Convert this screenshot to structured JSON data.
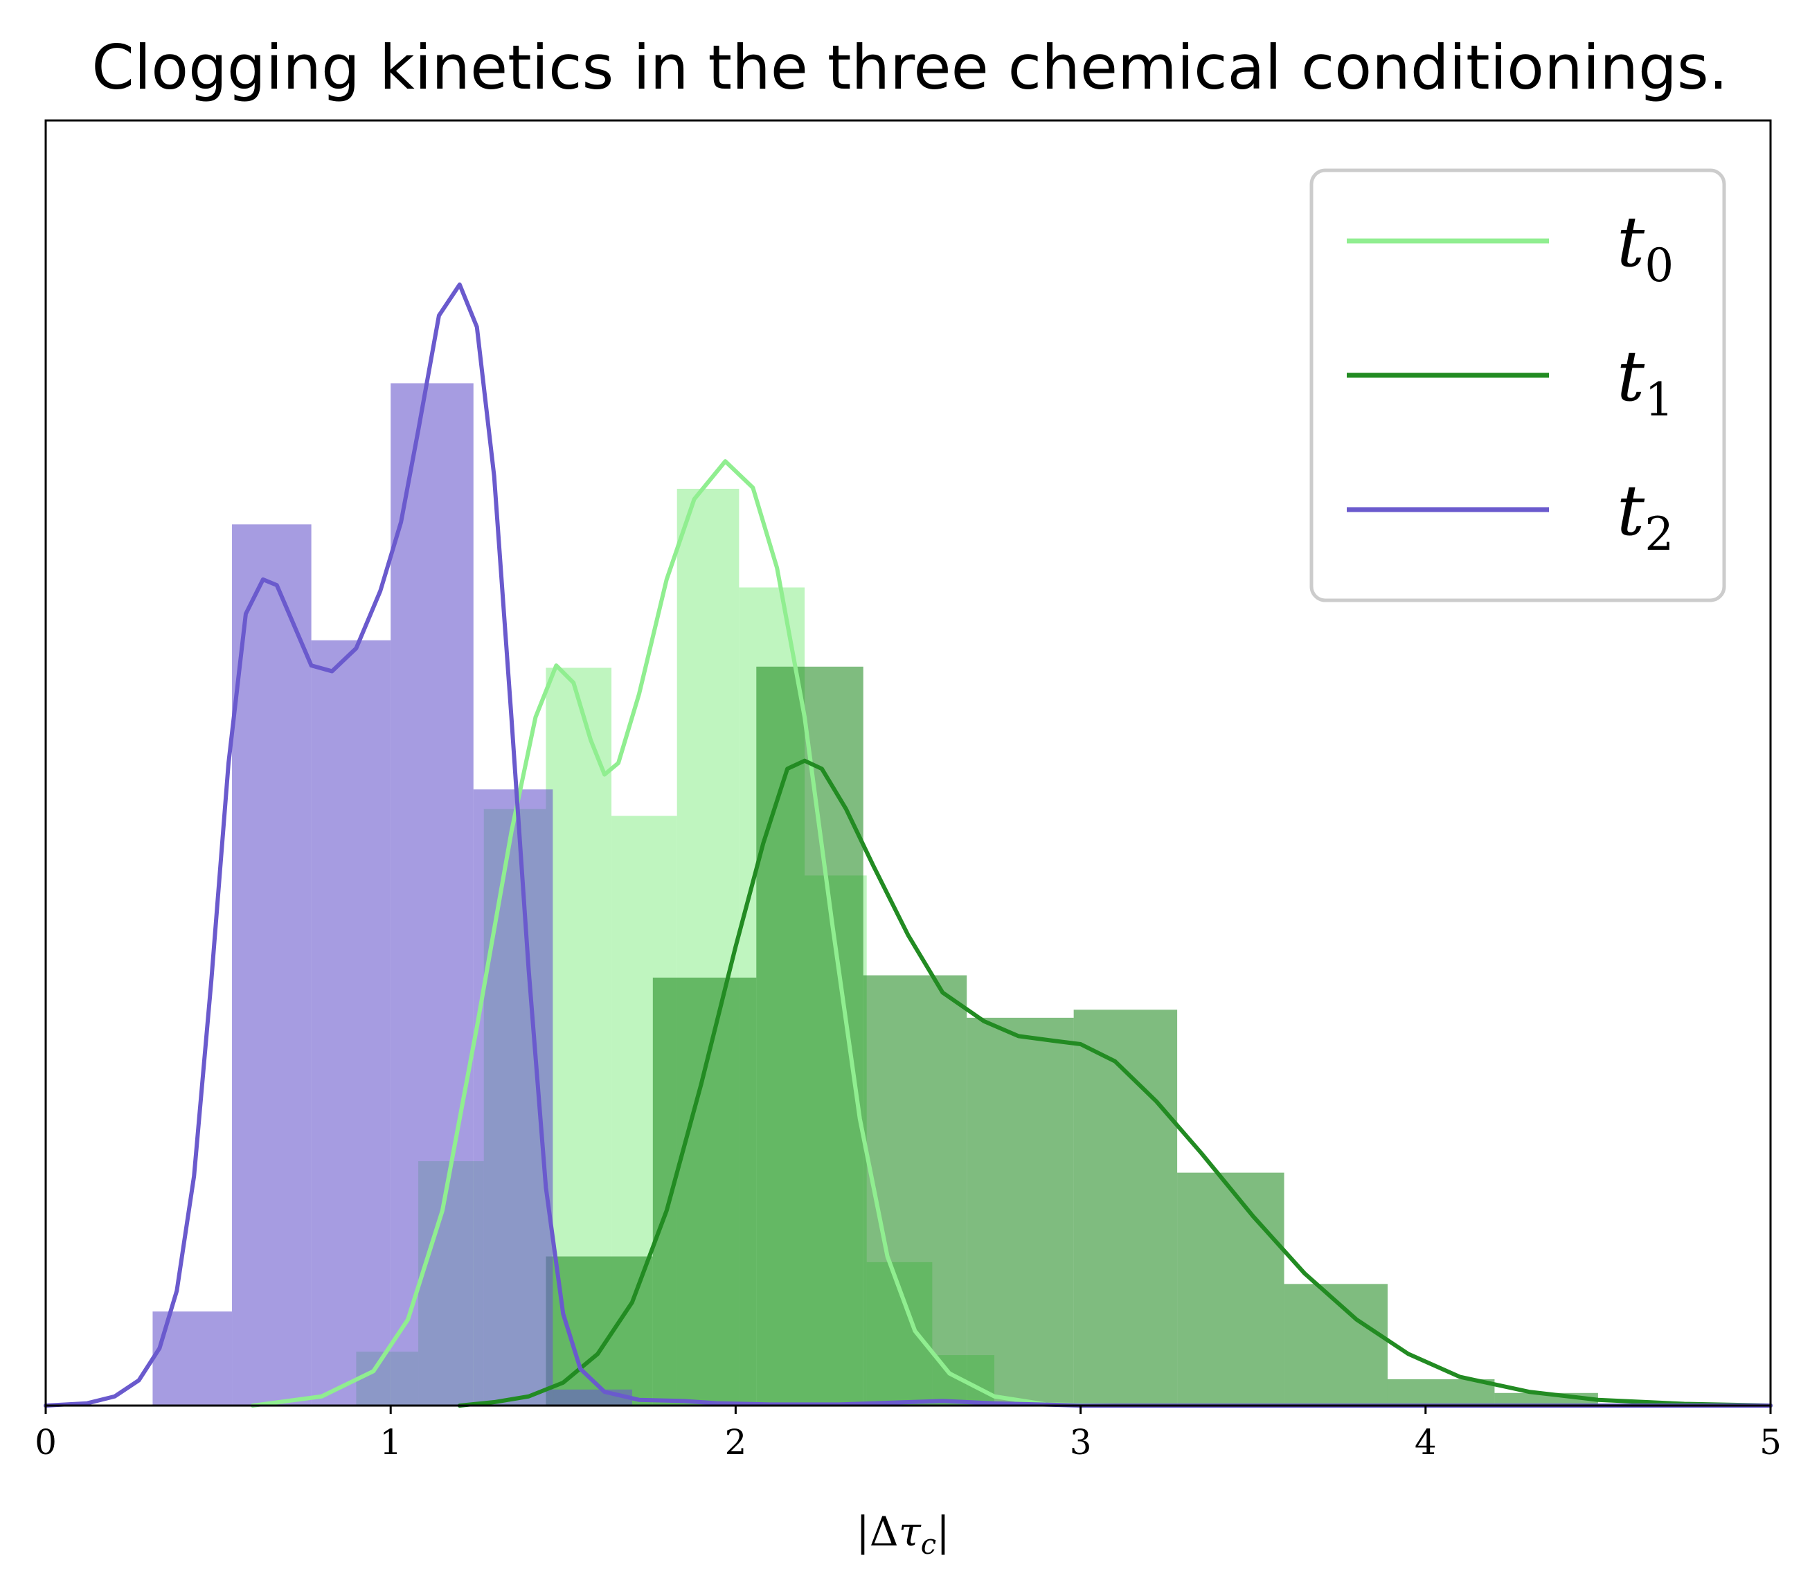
{
  "chart_data": {
    "type": "histogram",
    "title": "Clogging kinetics in the three chemical conditionings.",
    "xlabel": "|Δτ_c|",
    "ylabel": "",
    "xlim": [
      0,
      5
    ],
    "ylim": [
      0,
      1.12
    ],
    "x_ticks": [
      0,
      1,
      2,
      3,
      4,
      5
    ],
    "y_ticks_shown": false,
    "grid": false,
    "legend_position": "top-right",
    "series": [
      {
        "name": "t_0",
        "label_base": "t",
        "label_sub": "0",
        "line_color": "#90ee90",
        "fill_color": "#90ee90",
        "fill_opacity": 0.58,
        "bins": [
          {
            "x0": 0.9,
            "x1": 1.08,
            "value": 0.047
          },
          {
            "x0": 1.08,
            "x1": 1.27,
            "value": 0.213
          },
          {
            "x0": 1.27,
            "x1": 1.45,
            "value": 0.52
          },
          {
            "x0": 1.45,
            "x1": 1.64,
            "value": 0.643
          },
          {
            "x0": 1.64,
            "x1": 1.83,
            "value": 0.514
          },
          {
            "x0": 1.83,
            "x1": 2.01,
            "value": 0.799
          },
          {
            "x0": 2.01,
            "x1": 2.2,
            "value": 0.713
          },
          {
            "x0": 2.2,
            "x1": 2.38,
            "value": 0.462
          },
          {
            "x0": 2.38,
            "x1": 2.57,
            "value": 0.125
          },
          {
            "x0": 2.57,
            "x1": 2.75,
            "value": 0.044
          }
        ],
        "kde": [
          [
            0.6,
            0.0
          ],
          [
            0.8,
            0.008
          ],
          [
            0.95,
            0.03
          ],
          [
            1.05,
            0.075
          ],
          [
            1.15,
            0.17
          ],
          [
            1.25,
            0.33
          ],
          [
            1.35,
            0.5
          ],
          [
            1.42,
            0.6
          ],
          [
            1.48,
            0.645
          ],
          [
            1.53,
            0.63
          ],
          [
            1.58,
            0.58
          ],
          [
            1.62,
            0.55
          ],
          [
            1.66,
            0.56
          ],
          [
            1.72,
            0.62
          ],
          [
            1.8,
            0.72
          ],
          [
            1.88,
            0.79
          ],
          [
            1.97,
            0.823
          ],
          [
            2.05,
            0.8
          ],
          [
            2.12,
            0.73
          ],
          [
            2.2,
            0.6
          ],
          [
            2.28,
            0.42
          ],
          [
            2.36,
            0.25
          ],
          [
            2.44,
            0.13
          ],
          [
            2.52,
            0.065
          ],
          [
            2.62,
            0.028
          ],
          [
            2.75,
            0.008
          ],
          [
            2.9,
            0.001
          ],
          [
            3.1,
            0.0
          ]
        ]
      },
      {
        "name": "t_1",
        "label_base": "t",
        "label_sub": "1",
        "line_color": "#228b22",
        "fill_color": "#228b22",
        "fill_opacity": 0.58,
        "bins": [
          {
            "x0": 1.45,
            "x1": 1.76,
            "value": 0.13
          },
          {
            "x0": 1.76,
            "x1": 2.06,
            "value": 0.373
          },
          {
            "x0": 2.06,
            "x1": 2.37,
            "value": 0.644
          },
          {
            "x0": 2.37,
            "x1": 2.67,
            "value": 0.375
          },
          {
            "x0": 2.67,
            "x1": 2.98,
            "value": 0.338
          },
          {
            "x0": 2.98,
            "x1": 3.28,
            "value": 0.345
          },
          {
            "x0": 3.28,
            "x1": 3.59,
            "value": 0.203
          },
          {
            "x0": 3.59,
            "x1": 3.89,
            "value": 0.106
          },
          {
            "x0": 3.89,
            "x1": 4.2,
            "value": 0.023
          },
          {
            "x0": 4.2,
            "x1": 4.5,
            "value": 0.011
          }
        ],
        "kde": [
          [
            1.2,
            0.0
          ],
          [
            1.3,
            0.003
          ],
          [
            1.4,
            0.008
          ],
          [
            1.5,
            0.02
          ],
          [
            1.6,
            0.045
          ],
          [
            1.7,
            0.09
          ],
          [
            1.8,
            0.17
          ],
          [
            1.9,
            0.28
          ],
          [
            2.0,
            0.4
          ],
          [
            2.08,
            0.49
          ],
          [
            2.15,
            0.555
          ],
          [
            2.2,
            0.562
          ],
          [
            2.25,
            0.555
          ],
          [
            2.32,
            0.52
          ],
          [
            2.4,
            0.47
          ],
          [
            2.5,
            0.41
          ],
          [
            2.6,
            0.36
          ],
          [
            2.72,
            0.335
          ],
          [
            2.82,
            0.322
          ],
          [
            2.92,
            0.318
          ],
          [
            3.0,
            0.315
          ],
          [
            3.1,
            0.3
          ],
          [
            3.22,
            0.265
          ],
          [
            3.35,
            0.22
          ],
          [
            3.5,
            0.165
          ],
          [
            3.65,
            0.115
          ],
          [
            3.8,
            0.075
          ],
          [
            3.95,
            0.045
          ],
          [
            4.1,
            0.025
          ],
          [
            4.3,
            0.012
          ],
          [
            4.5,
            0.005
          ],
          [
            4.75,
            0.0015
          ],
          [
            5.0,
            0.0
          ]
        ]
      },
      {
        "name": "t_2",
        "label_base": "t",
        "label_sub": "2",
        "line_color": "#6a5acd",
        "fill_color": "#6a5acd",
        "fill_opacity": 0.6,
        "bins": [
          {
            "x0": 0.31,
            "x1": 0.54,
            "value": 0.082
          },
          {
            "x0": 0.54,
            "x1": 0.77,
            "value": 0.768
          },
          {
            "x0": 0.77,
            "x1": 1.0,
            "value": 0.667
          },
          {
            "x0": 1.0,
            "x1": 1.24,
            "value": 0.891
          },
          {
            "x0": 1.24,
            "x1": 1.47,
            "value": 0.537
          },
          {
            "x0": 1.47,
            "x1": 1.7,
            "value": 0.014
          }
        ],
        "kde": [
          [
            0.0,
            0.0
          ],
          [
            0.12,
            0.002
          ],
          [
            0.2,
            0.008
          ],
          [
            0.27,
            0.022
          ],
          [
            0.33,
            0.05
          ],
          [
            0.38,
            0.1
          ],
          [
            0.43,
            0.2
          ],
          [
            0.48,
            0.37
          ],
          [
            0.53,
            0.56
          ],
          [
            0.58,
            0.69
          ],
          [
            0.63,
            0.72
          ],
          [
            0.67,
            0.715
          ],
          [
            0.72,
            0.68
          ],
          [
            0.77,
            0.645
          ],
          [
            0.83,
            0.64
          ],
          [
            0.9,
            0.66
          ],
          [
            0.97,
            0.71
          ],
          [
            1.03,
            0.77
          ],
          [
            1.08,
            0.85
          ],
          [
            1.14,
            0.95
          ],
          [
            1.2,
            0.977
          ],
          [
            1.25,
            0.94
          ],
          [
            1.3,
            0.81
          ],
          [
            1.35,
            0.6
          ],
          [
            1.4,
            0.38
          ],
          [
            1.45,
            0.19
          ],
          [
            1.5,
            0.08
          ],
          [
            1.55,
            0.032
          ],
          [
            1.62,
            0.012
          ],
          [
            1.72,
            0.005
          ],
          [
            1.85,
            0.004
          ],
          [
            1.95,
            0.002
          ],
          [
            2.1,
            0.001
          ],
          [
            2.3,
            0.001
          ],
          [
            2.5,
            0.003
          ],
          [
            2.6,
            0.004
          ],
          [
            2.75,
            0.002
          ],
          [
            3.0,
            0.0
          ],
          [
            5.0,
            0.0
          ]
        ]
      }
    ]
  }
}
